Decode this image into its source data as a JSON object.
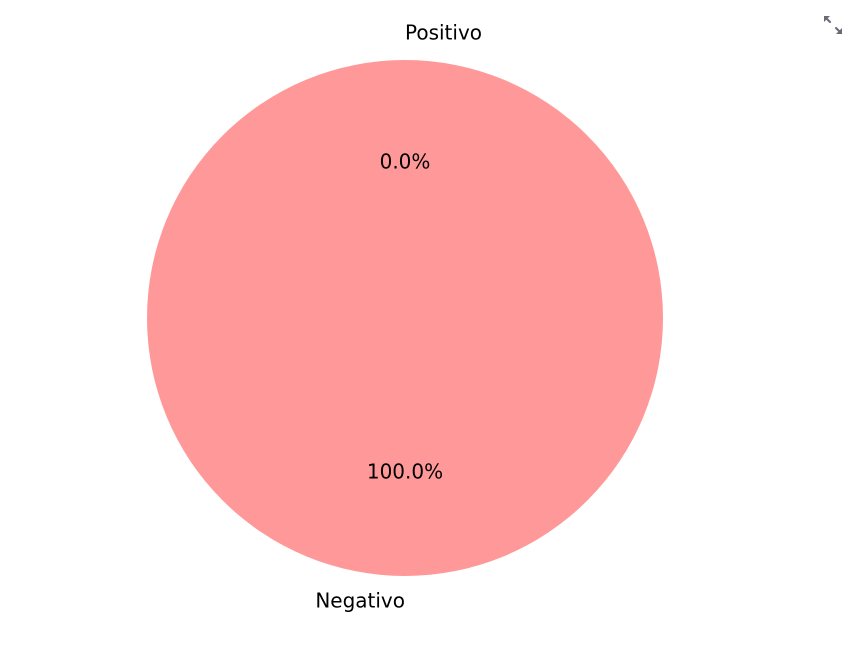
{
  "toolbar": {
    "expand_icon": "expand-arrows-icon",
    "icon_color": "#6b6b78"
  },
  "chart_data": {
    "type": "pie",
    "categories": [
      "Positivo",
      "Negativo"
    ],
    "values": [
      0.0,
      100.0
    ],
    "percent_labels": [
      "0.0%",
      "100.0%"
    ],
    "colors": [
      "#66b3ff",
      "#ff9999"
    ],
    "title": "",
    "legend": false
  }
}
